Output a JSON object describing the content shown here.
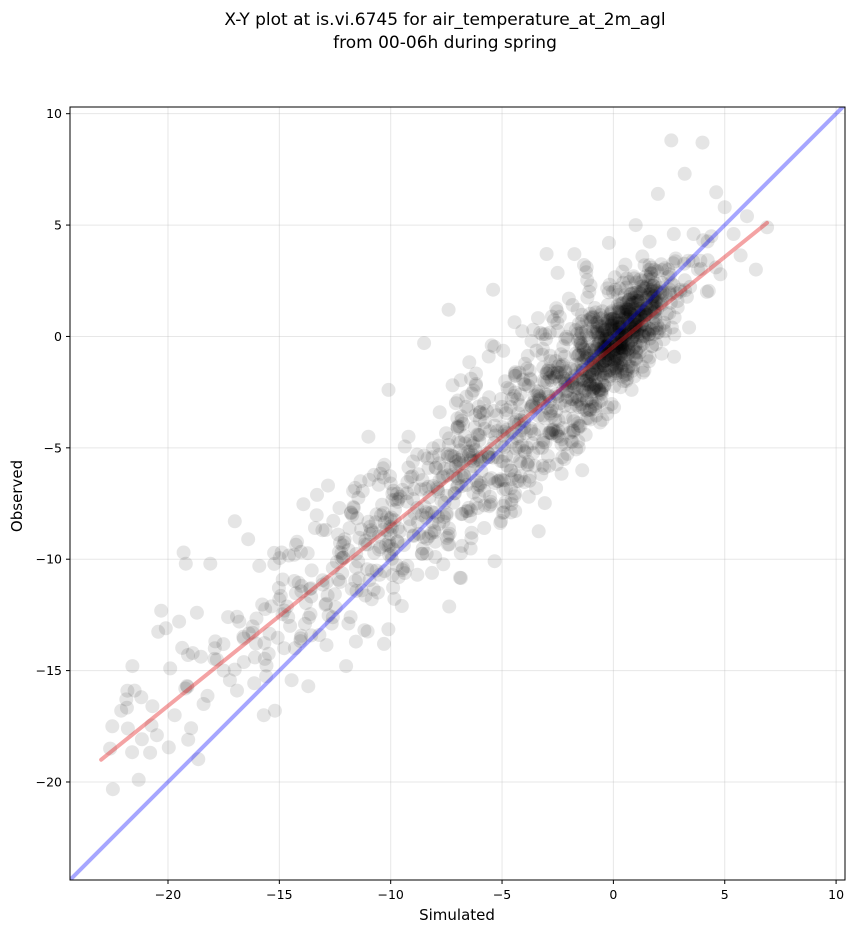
{
  "chart_data": {
    "type": "scatter",
    "title": "X-Y plot at is.vi.6745 for air_temperature_at_2m_agl",
    "subtitle": "from 00-06h during spring",
    "xlabel": "Simulated",
    "ylabel": "Observed",
    "xlim": [
      -24.4,
      10.4
    ],
    "ylim": [
      -24.4,
      10.3
    ],
    "xticks": [
      -20,
      -15,
      -10,
      -5,
      0,
      5,
      10
    ],
    "yticks": [
      -20,
      -15,
      -10,
      -5,
      0,
      5,
      10
    ],
    "xtick_labels": [
      "−20",
      "−15",
      "−10",
      "−5",
      "0",
      "5",
      "10"
    ],
    "ytick_labels": [
      "−20",
      "−15",
      "−10",
      "−5",
      "0",
      "5",
      "10"
    ],
    "grid": true,
    "legend": "none",
    "colors": {
      "points": "#000000",
      "identity_line": "#0000ff",
      "regression_line": "#e41a1c",
      "grid": "#b0b0b0"
    },
    "series": [
      {
        "type": "scatter",
        "point_count": 1500,
        "alpha": 0.1,
        "x_range_approx": [
          -22.8,
          6.9
        ],
        "points": [
          [
            -22.6,
            -18.5
          ],
          [
            -22.5,
            -17.5
          ],
          [
            -22.1,
            -16.8
          ],
          [
            -21.8,
            -17.6
          ],
          [
            -21.6,
            -14.8
          ],
          [
            -21.5,
            -15.9
          ],
          [
            -21.2,
            -16.2
          ],
          [
            -20.7,
            -16.6
          ],
          [
            -20.5,
            -17.9
          ],
          [
            -20.1,
            -13.1
          ],
          [
            -19.9,
            -14.9
          ],
          [
            -19.7,
            -17.0
          ],
          [
            -19.5,
            -12.8
          ],
          [
            -19.3,
            -9.7
          ],
          [
            -19.2,
            -10.2
          ],
          [
            -19.1,
            -14.3
          ],
          [
            -18.7,
            -12.4
          ],
          [
            -18.4,
            -16.5
          ],
          [
            -18.1,
            -10.2
          ],
          [
            -17.9,
            -14.0
          ],
          [
            -17.5,
            -15.0
          ],
          [
            -17.3,
            -12.6
          ],
          [
            -17.0,
            -8.3
          ],
          [
            -16.9,
            -15.9
          ],
          [
            -16.8,
            -12.8
          ],
          [
            -16.4,
            -9.1
          ],
          [
            -16.2,
            -13.3
          ],
          [
            -15.9,
            -10.3
          ],
          [
            -15.7,
            -17.0
          ],
          [
            -15.2,
            -16.8
          ],
          [
            -15.0,
            -11.8
          ],
          [
            -14.9,
            -9.7
          ],
          [
            -14.6,
            -12.6
          ],
          [
            -14.3,
            -14.0
          ],
          [
            -14.0,
            -11.2
          ],
          [
            -13.7,
            -15.7
          ],
          [
            -13.4,
            -8.6
          ],
          [
            -13.2,
            -13.4
          ],
          [
            -12.9,
            -12.0
          ],
          [
            -12.6,
            -10.4
          ],
          [
            -12.3,
            -7.7
          ],
          [
            -12.0,
            -14.8
          ],
          [
            -11.8,
            -12.6
          ],
          [
            -11.6,
            -6.8
          ],
          [
            -11.3,
            -11.4
          ],
          [
            -11.0,
            -4.5
          ],
          [
            -10.8,
            -8.8
          ],
          [
            -10.5,
            -10.7
          ],
          [
            -10.3,
            -13.8
          ],
          [
            -10.1,
            -2.4
          ],
          [
            -10.0,
            -6.6
          ],
          [
            -9.7,
            -9.2
          ],
          [
            -9.5,
            -12.1
          ],
          [
            -9.2,
            -4.5
          ],
          [
            -9.0,
            -7.3
          ],
          [
            -8.8,
            -10.7
          ],
          [
            -8.5,
            -0.3
          ],
          [
            -8.3,
            -5.9
          ],
          [
            -8.0,
            -9.9
          ],
          [
            -7.8,
            -3.4
          ],
          [
            -7.6,
            -8.1
          ],
          [
            -7.4,
            1.2
          ],
          [
            -7.2,
            -6.2
          ],
          [
            -7.0,
            -4.1
          ],
          [
            -6.8,
            -9.4
          ],
          [
            -6.6,
            -2.7
          ],
          [
            -6.4,
            -7.8
          ],
          [
            -6.2,
            -5.1
          ],
          [
            -6.0,
            -3.4
          ],
          [
            -5.8,
            -8.6
          ],
          [
            -5.6,
            -0.9
          ],
          [
            -5.4,
            2.1
          ],
          [
            -5.2,
            -6.5
          ],
          [
            -5.0,
            -4.9
          ],
          [
            -4.8,
            -3.3
          ],
          [
            -4.6,
            -7.9
          ],
          [
            -4.4,
            -1.6
          ],
          [
            -4.2,
            -5.6
          ],
          [
            -4.0,
            -3.8
          ],
          [
            -3.8,
            -7.2
          ],
          [
            -3.6,
            0.3
          ],
          [
            -3.4,
            -2.6
          ],
          [
            -3.2,
            -5.0
          ],
          [
            -3.0,
            3.7
          ],
          [
            -2.8,
            -4.2
          ],
          [
            -2.6,
            -1.1
          ],
          [
            -2.4,
            -3.0
          ],
          [
            -2.2,
            -5.5
          ],
          [
            -2.0,
            1.7
          ],
          [
            -1.8,
            -2.1
          ],
          [
            -1.6,
            -3.9
          ],
          [
            -1.4,
            -0.4
          ],
          [
            -1.2,
            3.1
          ],
          [
            -1.0,
            -2.8
          ],
          [
            -0.8,
            -1.2
          ],
          [
            -0.6,
            0.8
          ],
          [
            -0.4,
            -2.2
          ],
          [
            -0.2,
            4.2
          ],
          [
            0.0,
            -0.7
          ],
          [
            0.2,
            1.4
          ],
          [
            0.4,
            -1.6
          ],
          [
            0.6,
            2.6
          ],
          [
            0.8,
            -0.2
          ],
          [
            1.0,
            5.0
          ],
          [
            1.2,
            0.9
          ],
          [
            1.4,
            3.2
          ],
          [
            1.6,
            0.1
          ],
          [
            1.8,
            1.8
          ],
          [
            2.0,
            6.4
          ],
          [
            2.2,
            2.4
          ],
          [
            2.4,
            1.0
          ],
          [
            2.6,
            8.8
          ],
          [
            2.8,
            3.5
          ],
          [
            3.0,
            2.1
          ],
          [
            3.2,
            7.3
          ],
          [
            3.4,
            0.4
          ],
          [
            3.6,
            4.6
          ],
          [
            3.8,
            3.0
          ],
          [
            4.0,
            8.7
          ],
          [
            4.2,
            2.0
          ],
          [
            4.4,
            4.5
          ],
          [
            4.6,
            3.1
          ],
          [
            5.0,
            5.8
          ],
          [
            5.4,
            4.6
          ],
          [
            6.0,
            5.4
          ],
          [
            6.4,
            3.0
          ],
          [
            6.9,
            4.9
          ]
        ]
      },
      {
        "type": "line",
        "role": "identity",
        "x": [
          -24.4,
          10.4
        ],
        "y": [
          -24.4,
          10.4
        ]
      },
      {
        "type": "line",
        "role": "regression",
        "x": [
          -23.0,
          6.9
        ],
        "y": [
          -19.0,
          5.1
        ]
      }
    ]
  }
}
